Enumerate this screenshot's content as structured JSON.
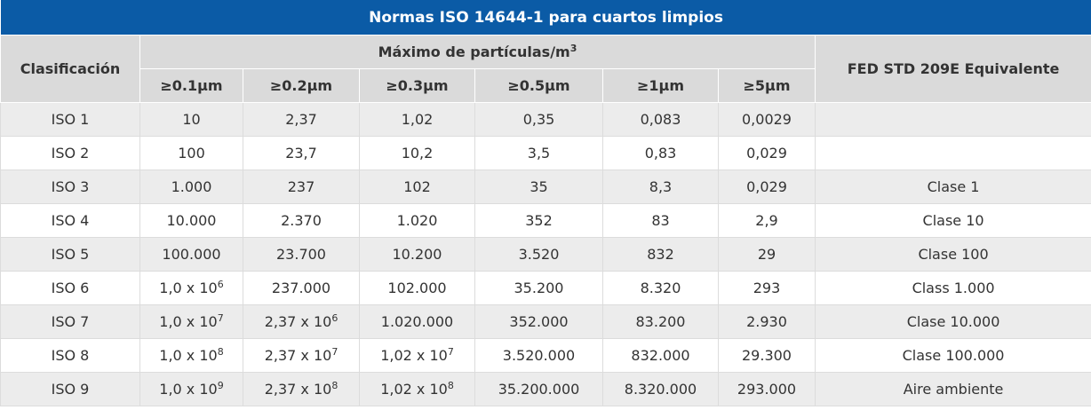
{
  "title": "Normas ISO 14644-1 para cuartos limpios",
  "header": {
    "classification": "Clasificación",
    "group": {
      "text": "Máximo de partículas/m",
      "sup": "3"
    },
    "sizes": [
      "≥0.1µm",
      "≥0.2µm",
      "≥0.3µm",
      "≥0.5µm",
      "≥1µm",
      "≥5µm"
    ],
    "fed": "FED STD 209E Equivalente"
  },
  "table": {
    "rows": [
      {
        "class": "ISO 1",
        "values": [
          "10",
          "2,37",
          "1,02",
          "0,35",
          "0,083",
          "0,0029"
        ]
      },
      {
        "class": "ISO 2",
        "values": [
          "100",
          "23,7",
          "10,2",
          "3,5",
          "0,83",
          "0,029"
        ]
      },
      {
        "class": "ISO 3",
        "values": [
          "1.000",
          "237",
          "102",
          "35",
          "8,3",
          "0,029"
        ],
        "fed": "Clase 1"
      },
      {
        "class": "ISO 4",
        "values": [
          "10.000",
          "2.370",
          "1.020",
          "352",
          "83",
          "2,9"
        ],
        "fed": "Clase 10"
      },
      {
        "class": "ISO 5",
        "values": [
          "100.000",
          "23.700",
          "10.200",
          "3.520",
          "832",
          "29"
        ],
        "fed": "Clase 100"
      },
      {
        "class": "ISO 6",
        "values": [
          {
            "text": "1,0 x 10",
            "sup": "6"
          },
          "237.000",
          "102.000",
          "35.200",
          "8.320",
          "293"
        ],
        "fed": "Class 1.000"
      },
      {
        "class": "ISO 7",
        "values": [
          {
            "text": "1,0 x 10",
            "sup": "7"
          },
          {
            "text": "2,37 x 10",
            "sup": "6"
          },
          "1.020.000",
          "352.000",
          "83.200",
          "2.930"
        ],
        "fed": "Clase 10.000"
      },
      {
        "class": "ISO 8",
        "values": [
          {
            "text": "1,0 x 10",
            "sup": "8"
          },
          {
            "text": "2,37 x 10",
            "sup": "7"
          },
          {
            "text": "1,02 x 10",
            "sup": "7"
          },
          "3.520.000",
          "832.000",
          "29.300"
        ],
        "fed": "Clase 100.000"
      },
      {
        "class": "ISO 9",
        "values": [
          {
            "text": "1,0 x 10",
            "sup": "9"
          },
          {
            "text": "2,37 x 10",
            "sup": "8"
          },
          {
            "text": "1,02 x 10",
            "sup": "8"
          },
          "35.200.000",
          "8.320.000",
          "293.000"
        ],
        "fed": "Aire ambiente"
      }
    ]
  }
}
